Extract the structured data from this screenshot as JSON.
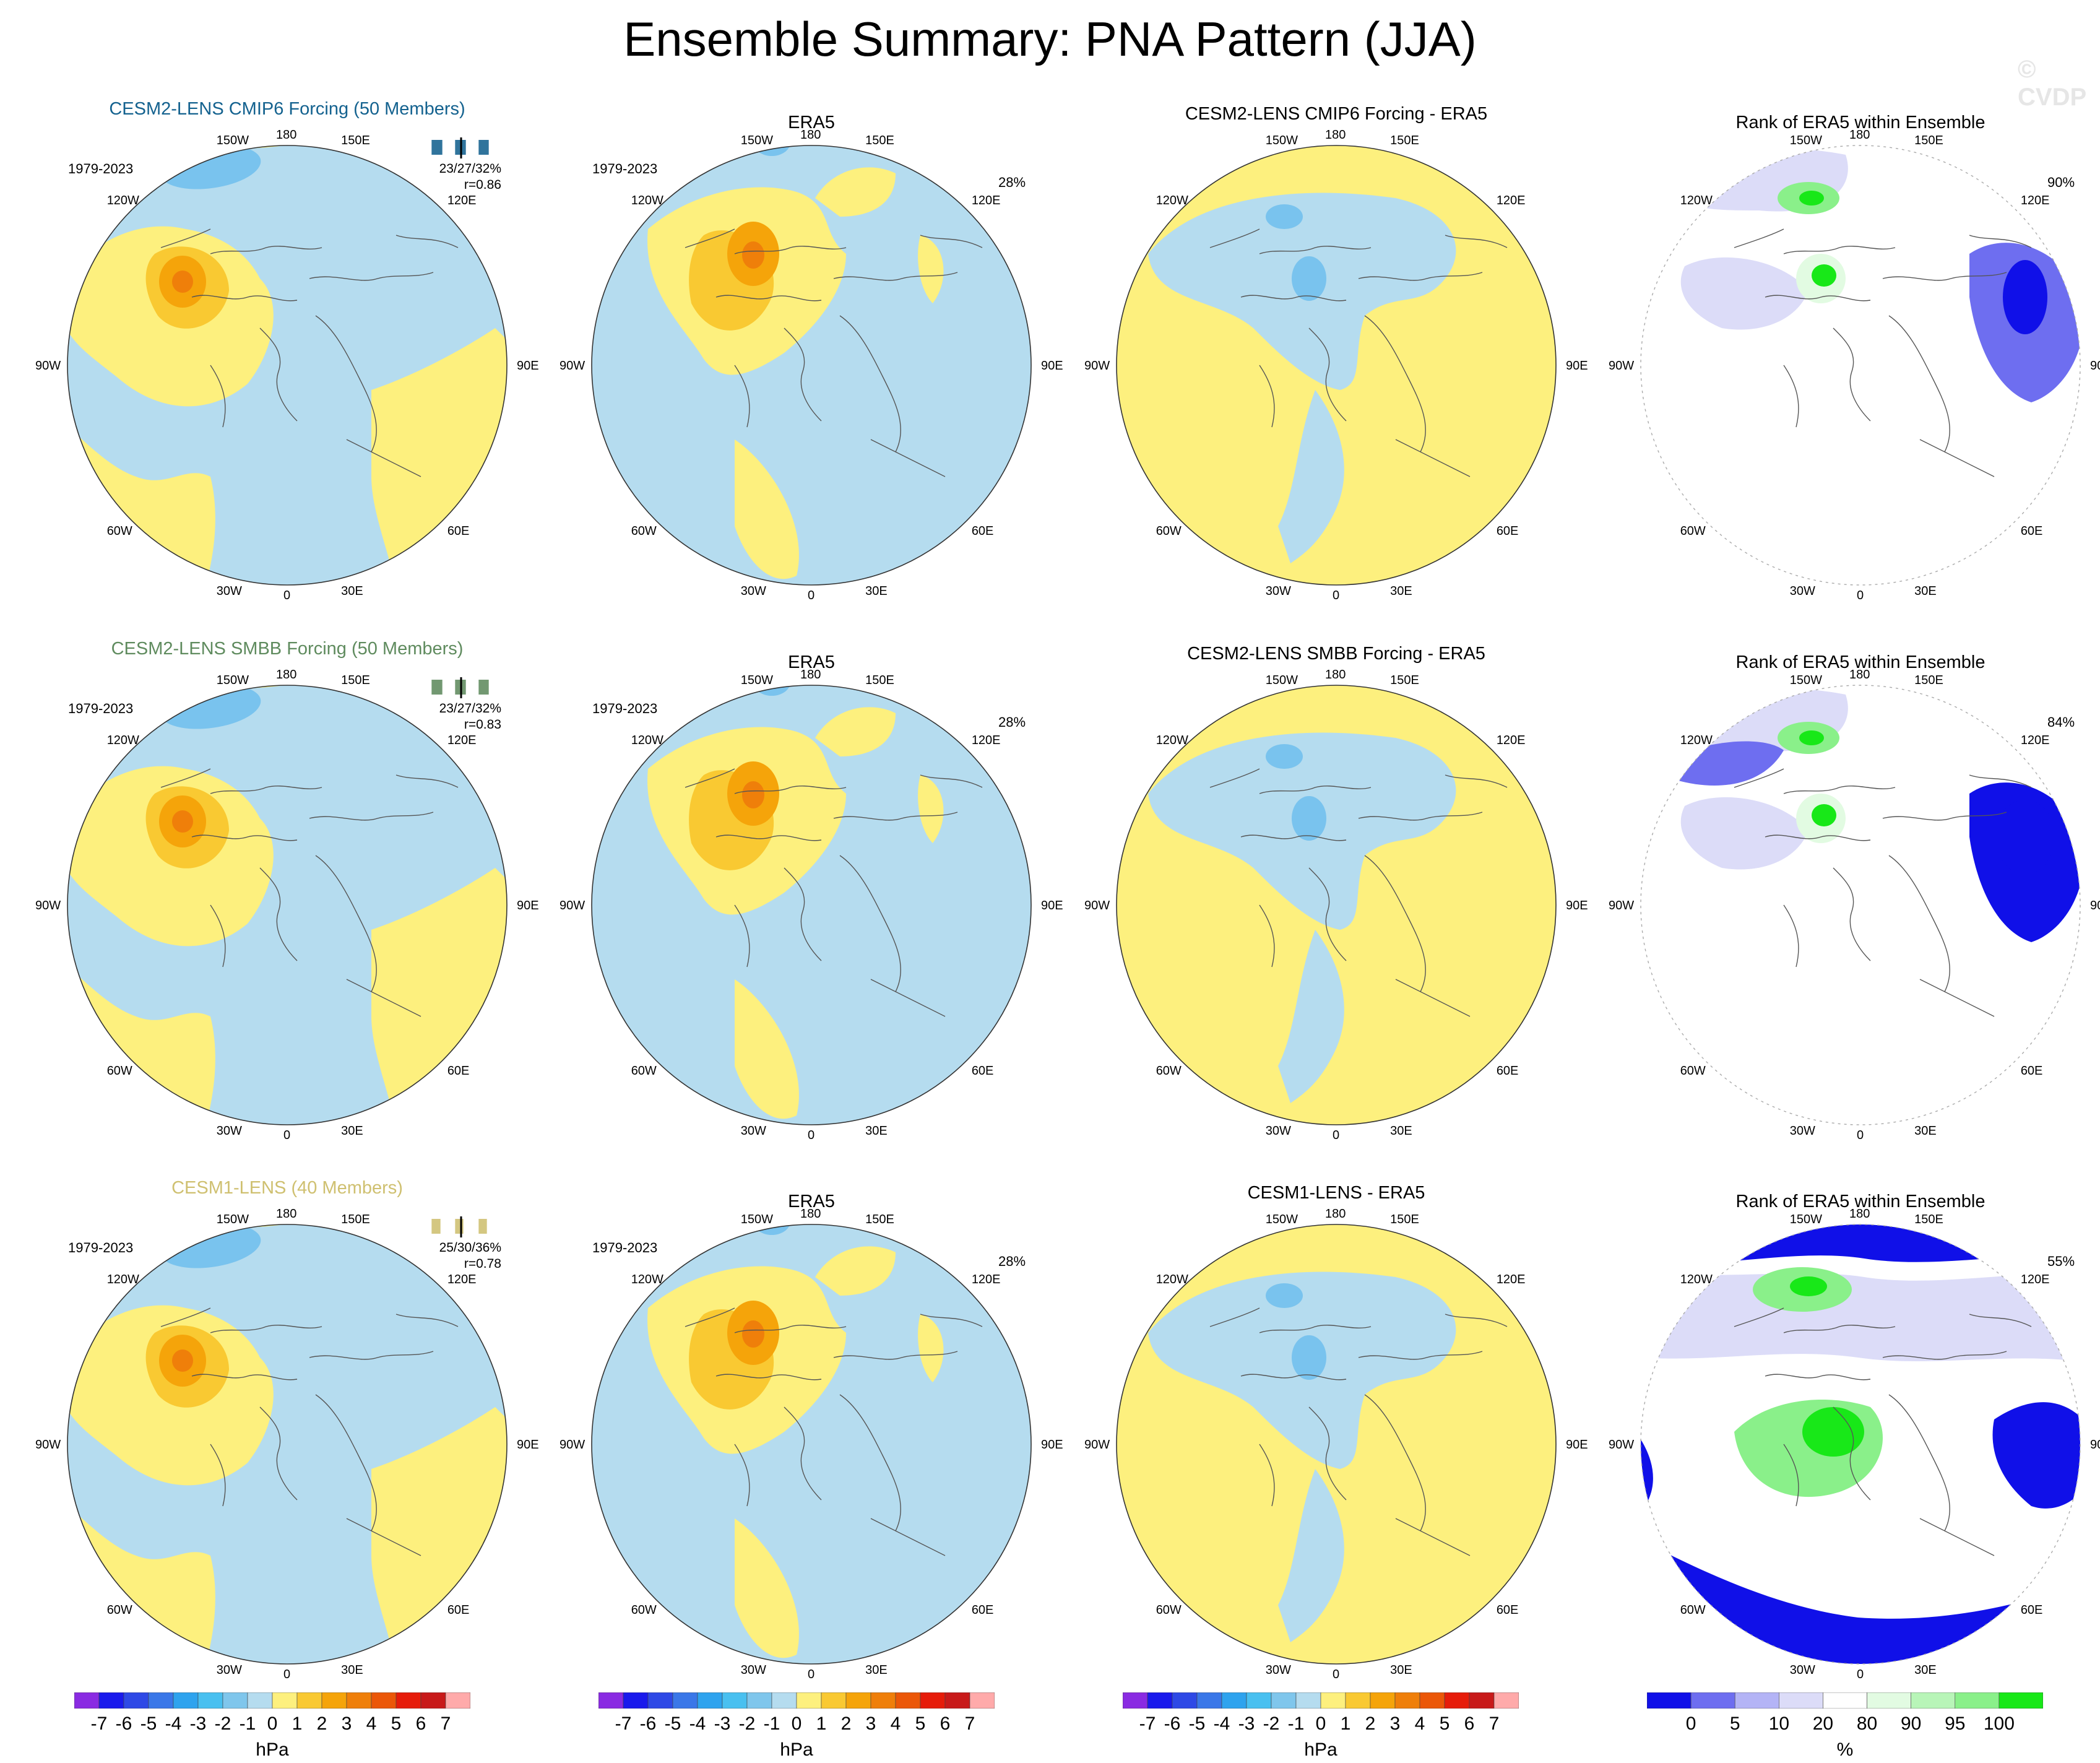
{
  "title": "Ensemble Summary: PNA Pattern (JJA)",
  "watermark": "© CVDP",
  "colors": {
    "pos1": "#fdf07e",
    "pos2": "#f9c932",
    "pos3": "#f5a40a",
    "pos4": "#ef7f0a",
    "neg1": "#b5dcef",
    "neg2": "#79c3ee",
    "rank_blue_dark": "#1010e8",
    "rank_blue_mid": "#6e6ef0",
    "rank_blue_light": "#dcdcf8",
    "rank_green_light": "#e2fbe2",
    "rank_green_mid": "#8af08a",
    "rank_green_dark": "#18e818"
  },
  "rows": [
    {
      "model_title": "CESM2-LENS CMIP6 Forcing (50 Members)",
      "model_title_color": "#14628f",
      "years": "1979-2023",
      "stats_pct": "23/27/32%",
      "stats_r": "r=0.86",
      "era_title": "ERA5",
      "era_years": "1979-2023",
      "era_pct": "28%",
      "diff_title": "CESM2-LENS CMIP6 Forcing - ERA5",
      "rank_title": "Rank of ERA5 within Ensemble",
      "rank_pct": "90%"
    },
    {
      "model_title": "CESM2-LENS SMBB Forcing (50 Members)",
      "model_title_color": "#5f8b5e",
      "years": "1979-2023",
      "stats_pct": "23/27/32%",
      "stats_r": "r=0.83",
      "era_title": "ERA5",
      "era_years": "1979-2023",
      "era_pct": "28%",
      "diff_title": "CESM2-LENS SMBB Forcing - ERA5",
      "rank_title": "Rank of ERA5 within Ensemble",
      "rank_pct": "84%"
    },
    {
      "model_title": "CESM1-LENS (40 Members)",
      "model_title_color": "#cfc070",
      "years": "1979-2023",
      "stats_pct": "25/30/36%",
      "stats_r": "r=0.78",
      "era_title": "ERA5",
      "era_years": "1979-2023",
      "era_pct": "28%",
      "diff_title": "CESM1-LENS - ERA5",
      "rank_title": "Rank of ERA5 within Ensemble",
      "rank_pct": "55%"
    }
  ],
  "map_labels": {
    "top": "180",
    "bottom": "0",
    "left": [
      "150W",
      "120W",
      "90W",
      "60W",
      "30W"
    ],
    "right": [
      "150E",
      "120E",
      "90E",
      "60E",
      "30E"
    ]
  },
  "chart_data": [
    {
      "type": "heatmap",
      "title": "Colorbar (hPa)",
      "xlabel": "hPa",
      "levels": [
        -7,
        -6,
        -5,
        -4,
        -3,
        -2,
        -1,
        0,
        1,
        2,
        3,
        4,
        5,
        6,
        7
      ],
      "tick_labels": [
        "-7",
        "-6",
        "-5",
        "-4",
        "-3",
        "-2",
        "-1",
        "0",
        "1",
        "2",
        "3",
        "4",
        "5",
        "6",
        "7"
      ],
      "colors": [
        "#8a2be2",
        "#1a1aec",
        "#2e49e6",
        "#3a77e8",
        "#2ea3ee",
        "#49c0f0",
        "#7fc6ec",
        "#b5dcef",
        "#fdf07e",
        "#f9c932",
        "#f5a40a",
        "#ef7f0a",
        "#eb5708",
        "#e61c0a",
        "#c81a1a",
        "#ffaaaa"
      ]
    },
    {
      "type": "heatmap",
      "title": "Colorbar (%)",
      "xlabel": "%",
      "levels": [
        0,
        5,
        10,
        20,
        80,
        90,
        95,
        100
      ],
      "tick_labels": [
        "0",
        "5",
        "10",
        "20",
        "80",
        "90",
        "95",
        "100"
      ],
      "colors": [
        "#1010e8",
        "#6e6ef0",
        "#b4b4f6",
        "#dcdcf8",
        "#ffffff",
        "#e2fbe2",
        "#b8f5b8",
        "#8af08a",
        "#18e818"
      ]
    }
  ]
}
